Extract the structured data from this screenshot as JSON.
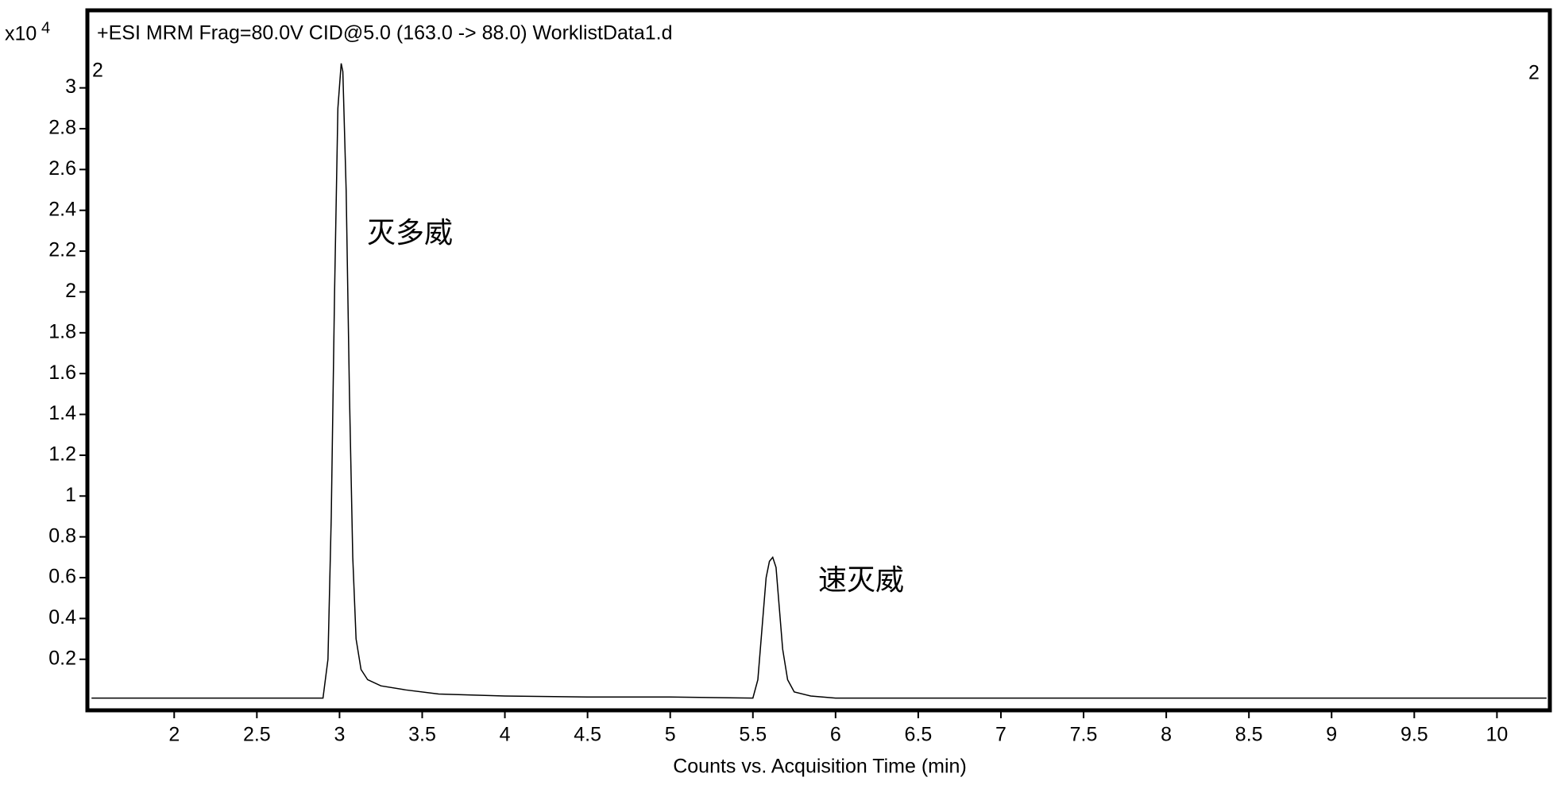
{
  "chart_data": {
    "type": "line",
    "title": "+ESI MRM Frag=80.0V CID@5.0 (163.0 -> 88.0) WorklistData1.d",
    "y_multiplier": "x10",
    "y_exponent": "4",
    "marker_left": "2",
    "marker_right": "2",
    "annotations": [
      "灭多威",
      "速灭威"
    ],
    "xlabel": "Counts vs. Acquisition Time (min)",
    "x": [
      1.5,
      2.9,
      2.93,
      2.95,
      2.97,
      2.99,
      3.01,
      3.02,
      3.04,
      3.06,
      3.08,
      3.1,
      3.13,
      3.17,
      3.25,
      3.4,
      3.6,
      4.0,
      4.5,
      5.0,
      5.5,
      5.53,
      5.56,
      5.58,
      5.6,
      5.62,
      5.64,
      5.66,
      5.68,
      5.71,
      5.75,
      5.85,
      6.0,
      7,
      8,
      9,
      10.3
    ],
    "series": [
      {
        "color": "#000000",
        "values": [
          0.01,
          0.01,
          0.2,
          0.9,
          2.0,
          2.9,
          3.12,
          3.08,
          2.5,
          1.5,
          0.7,
          0.3,
          0.15,
          0.1,
          0.07,
          0.05,
          0.03,
          0.02,
          0.015,
          0.015,
          0.01,
          0.1,
          0.4,
          0.6,
          0.68,
          0.7,
          0.65,
          0.45,
          0.25,
          0.1,
          0.04,
          0.02,
          0.01,
          0.01,
          0.01,
          0.01,
          0.01
        ]
      }
    ],
    "xlim": [
      1.475,
      10.32
    ],
    "ylim": [
      -0.05,
      3.38
    ],
    "xticks": [
      2,
      2.5,
      3,
      3.5,
      4,
      4.5,
      5,
      5.5,
      6,
      6.5,
      7,
      7.5,
      8,
      8.5,
      9,
      9.5,
      10
    ],
    "yticks": [
      0.2,
      0.4,
      0.6,
      0.8,
      1,
      1.2,
      1.4,
      1.6,
      1.8,
      2,
      2.2,
      2.4,
      2.6,
      2.8,
      3
    ]
  }
}
